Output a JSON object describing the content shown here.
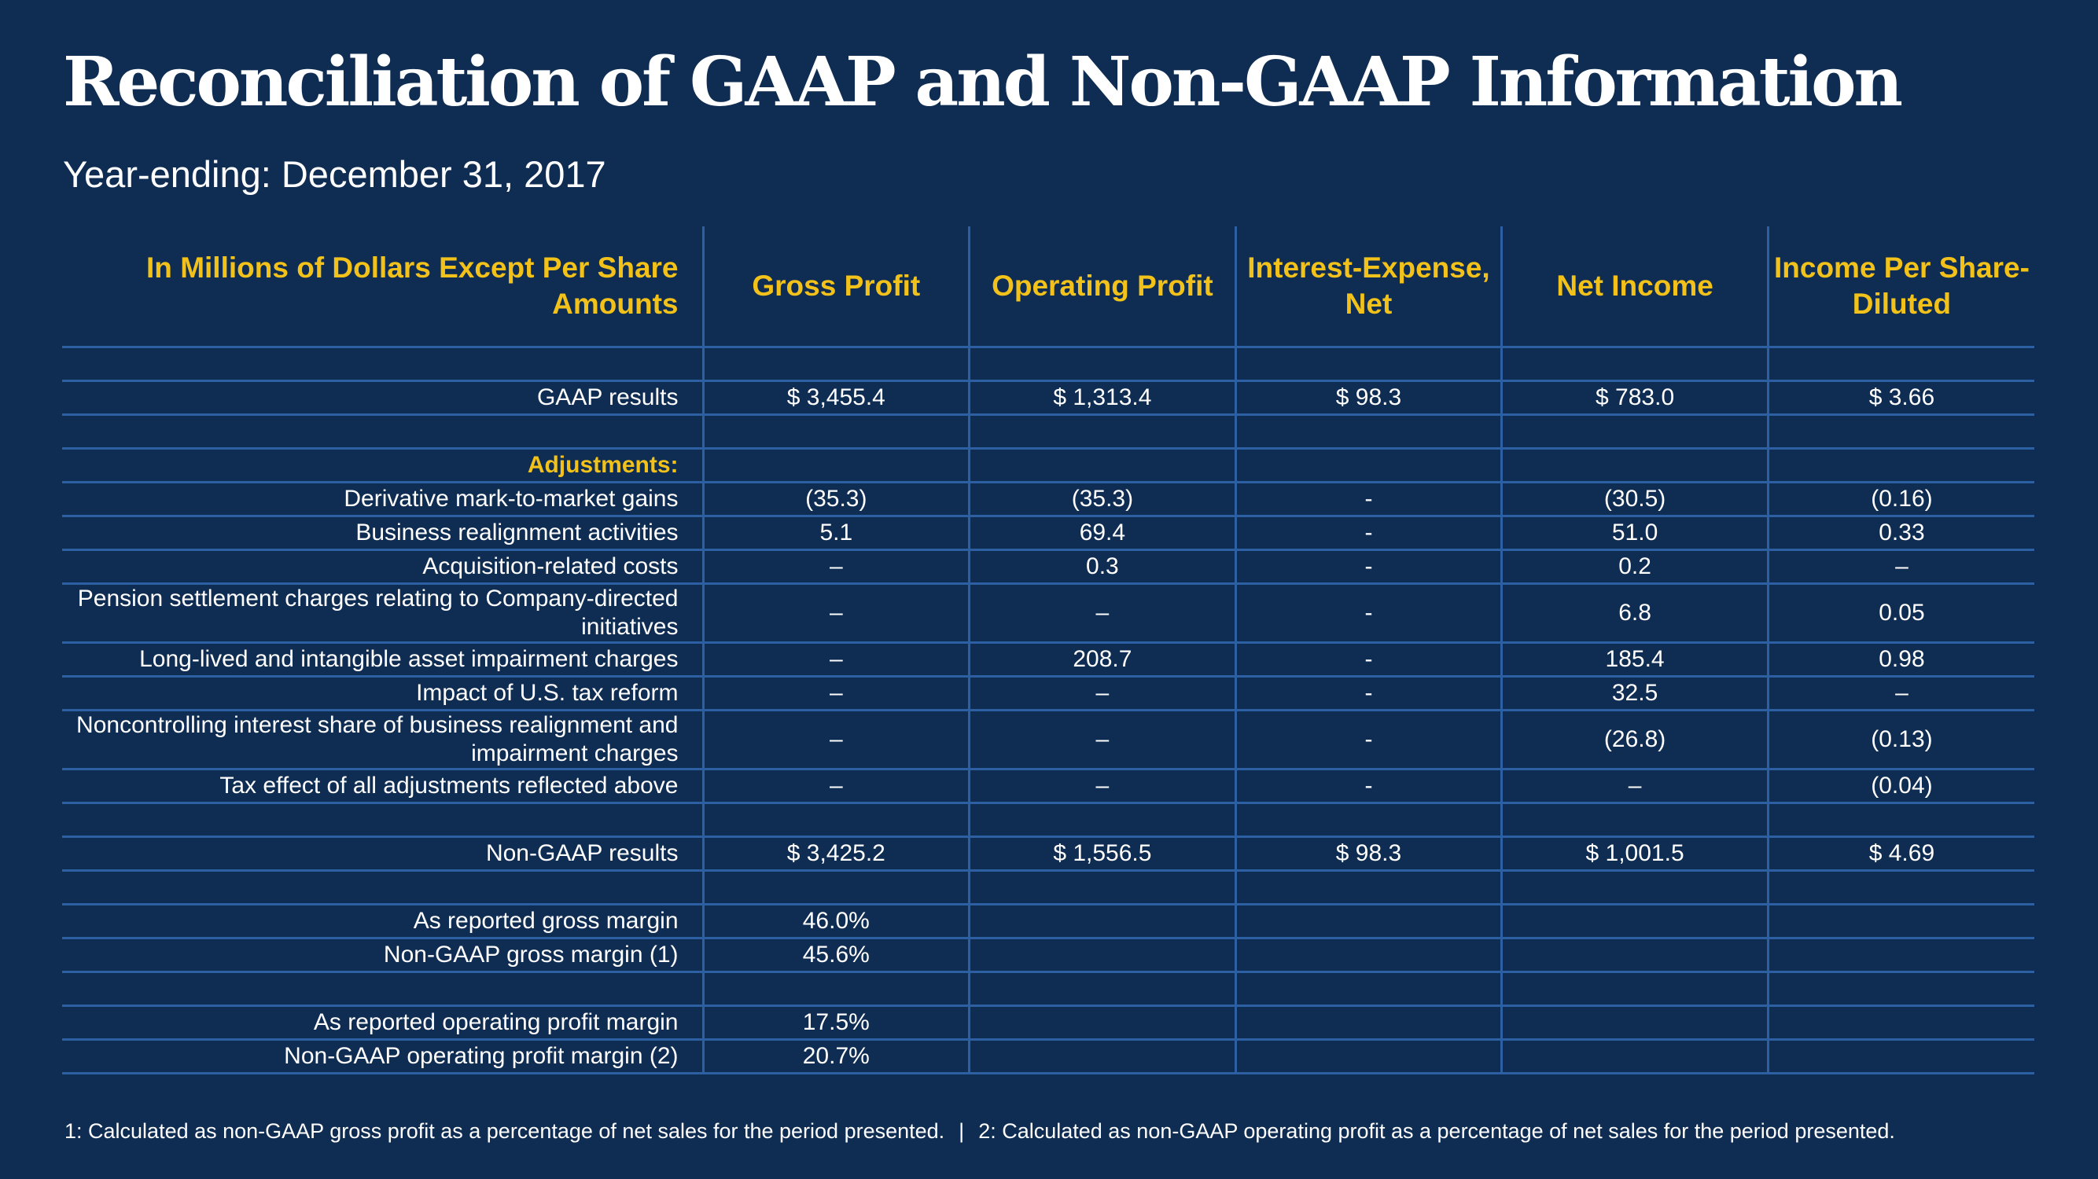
{
  "title": "Reconciliation of GAAP and Non-GAAP Information",
  "subtitle": "Year-ending: December 31, 2017",
  "table": {
    "header": {
      "label": "In Millions of Dollars Except Per Share Amounts",
      "columns": [
        "Gross Profit",
        "Operating Profit",
        "Interest-Expense, Net",
        "Net Income",
        "Income Per Share-Diluted"
      ]
    },
    "rows": [
      {
        "label": "",
        "values": [
          "",
          "",
          "",
          "",
          ""
        ]
      },
      {
        "label": "GAAP results",
        "values": [
          "$ 3,455.4",
          "$  1,313.4",
          "$ 98.3",
          "$ 783.0",
          "$ 3.66"
        ]
      },
      {
        "label": "",
        "values": [
          "",
          "",
          "",
          "",
          ""
        ]
      },
      {
        "label": "Adjustments:",
        "values": [
          "",
          "",
          "",
          "",
          ""
        ]
      },
      {
        "label": "Derivative mark-to-market gains",
        "values": [
          "(35.3)",
          "(35.3)",
          "-",
          "(30.5)",
          "(0.16)"
        ]
      },
      {
        "label": "Business realignment activities",
        "values": [
          "5.1",
          "69.4",
          "-",
          "51.0",
          "0.33"
        ]
      },
      {
        "label": "Acquisition-related costs",
        "values": [
          "–",
          "0.3",
          "-",
          "0.2",
          "–"
        ]
      },
      {
        "label": "Pension settlement charges relating to Company-directed initiatives",
        "values": [
          "–",
          "–",
          "-",
          "6.8",
          "0.05"
        ]
      },
      {
        "label": "Long-lived and intangible asset impairment charges",
        "values": [
          "–",
          "208.7",
          "-",
          "185.4",
          "0.98"
        ]
      },
      {
        "label": "Impact of U.S. tax reform",
        "values": [
          "–",
          "–",
          "-",
          "32.5",
          "–"
        ]
      },
      {
        "label": "Noncontrolling interest share of business realignment and impairment charges",
        "values": [
          "–",
          "–",
          "-",
          "(26.8)",
          "(0.13)"
        ]
      },
      {
        "label": "Tax effect of all adjustments reflected above",
        "values": [
          "–",
          "–",
          "-",
          "–",
          "(0.04)"
        ]
      },
      {
        "label": "",
        "values": [
          "",
          "",
          "",
          "",
          ""
        ]
      },
      {
        "label": "Non-GAAP results",
        "values": [
          "$ 3,425.2",
          "$ 1,556.5",
          "$ 98.3",
          "$ 1,001.5",
          "$ 4.69"
        ]
      },
      {
        "label": "",
        "values": [
          "",
          "",
          "",
          "",
          ""
        ]
      },
      {
        "label": "As reported gross margin",
        "values": [
          "46.0%",
          "",
          "",
          "",
          ""
        ]
      },
      {
        "label": "Non-GAAP gross margin (1)",
        "values": [
          "45.6%",
          "",
          "",
          "",
          ""
        ]
      },
      {
        "label": "",
        "values": [
          "",
          "",
          "",
          "",
          ""
        ]
      },
      {
        "label": "As reported operating profit margin",
        "values": [
          "17.5%",
          "",
          "",
          "",
          ""
        ]
      },
      {
        "label": "Non-GAAP operating profit margin (2)",
        "values": [
          "20.7%",
          "",
          "",
          "",
          ""
        ]
      }
    ]
  },
  "footnotes": {
    "note1": "1: Calculated as non-GAAP gross profit as a percentage of net sales for the period presented.",
    "separator": "|",
    "note2": "2: Calculated as non-GAAP operating profit as a percentage of net sales for the period presented."
  },
  "colors": {
    "background": "#0f2d52",
    "accent": "#f2c21b",
    "gridline": "#2d5fa3",
    "text": "#ffffff"
  }
}
